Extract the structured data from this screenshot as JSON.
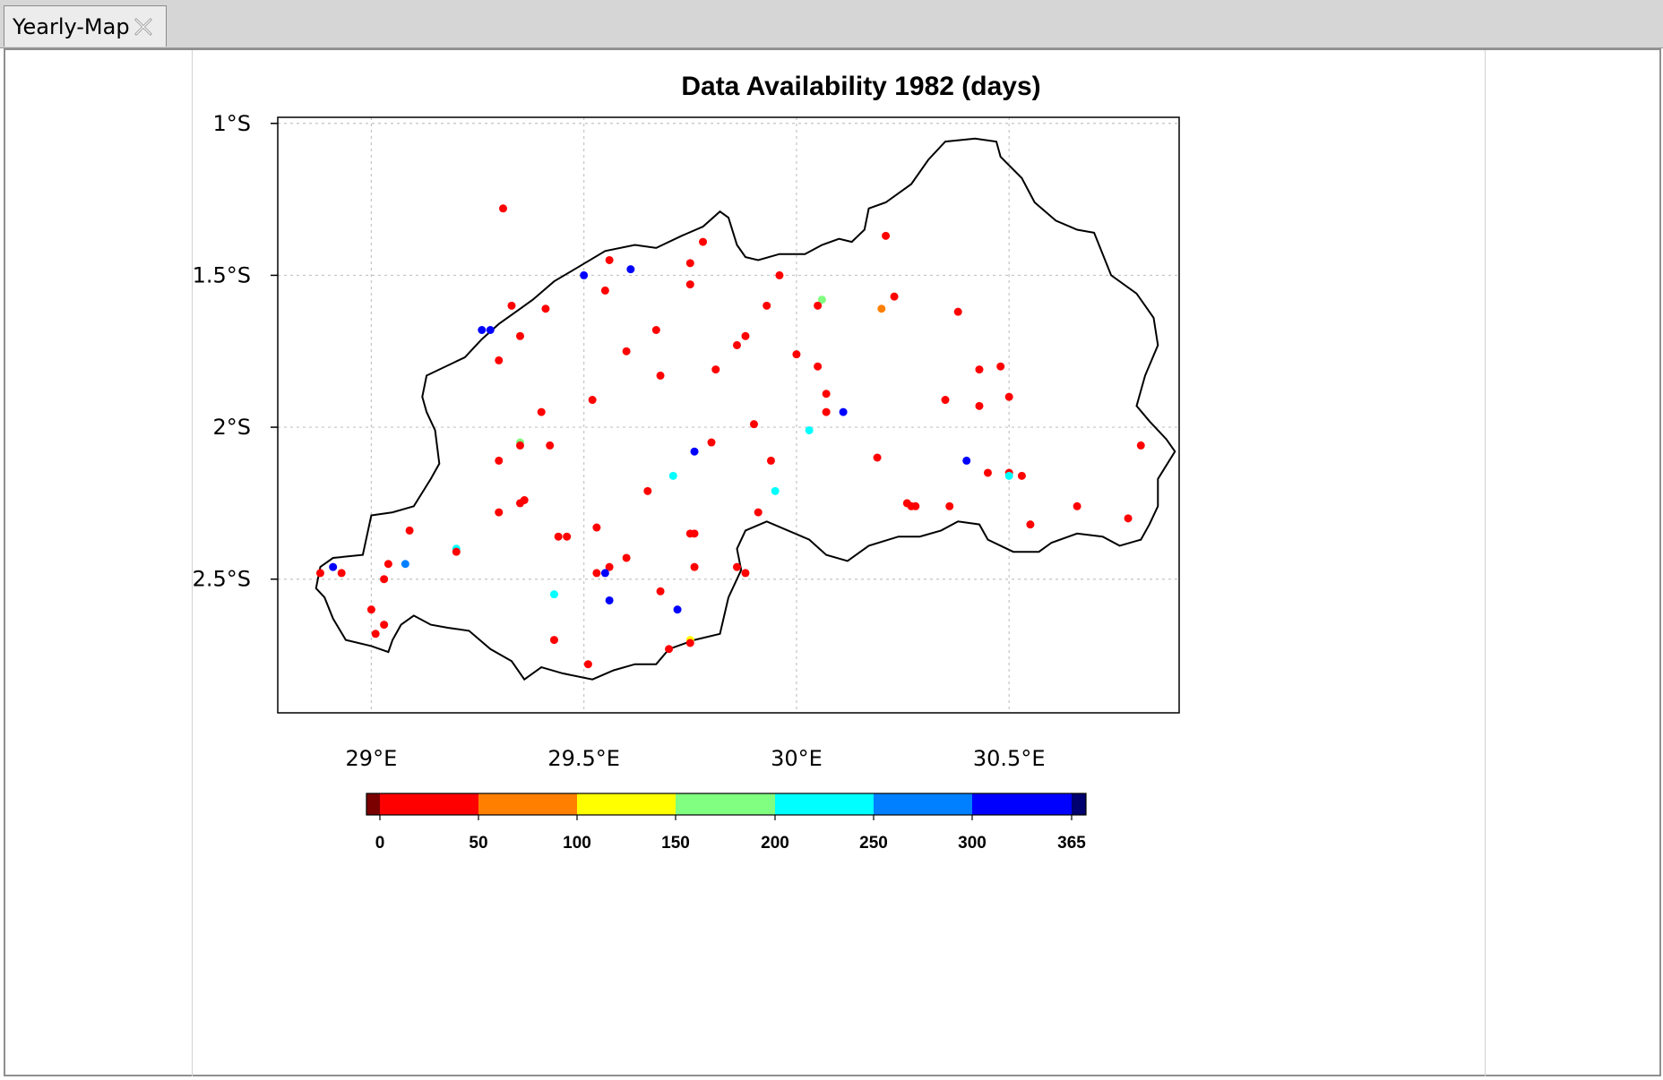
{
  "tab": {
    "title": "Yearly-Map",
    "close_icon": "close-icon"
  },
  "chart_data": {
    "type": "scatter",
    "title": "Data Availability 1982 (days)",
    "xlim": [
      28.78,
      30.9
    ],
    "ylim": [
      -2.94,
      -0.98
    ],
    "x_ticks": [
      {
        "value": 29.0,
        "label": "29°E"
      },
      {
        "value": 29.5,
        "label": "29.5°E"
      },
      {
        "value": 30.0,
        "label": "30°E"
      },
      {
        "value": 30.5,
        "label": "30.5°E"
      }
    ],
    "y_ticks": [
      {
        "value": -1.0,
        "label": "1°S"
      },
      {
        "value": -1.5,
        "label": "1.5°S"
      },
      {
        "value": -2.0,
        "label": "2°S"
      },
      {
        "value": -2.5,
        "label": "2.5°S"
      }
    ],
    "grid": true,
    "colorbar": {
      "ticks": [
        "0",
        "50",
        "100",
        "150",
        "200",
        "250",
        "300",
        "365"
      ],
      "bins": [
        {
          "from": null,
          "to": 0,
          "color": "#7a0000"
        },
        {
          "from": 0,
          "to": 50,
          "color": "#ff0000"
        },
        {
          "from": 50,
          "to": 100,
          "color": "#ff8000"
        },
        {
          "from": 100,
          "to": 150,
          "color": "#ffff00"
        },
        {
          "from": 150,
          "to": 200,
          "color": "#80ff80"
        },
        {
          "from": 200,
          "to": 250,
          "color": "#00ffff"
        },
        {
          "from": 250,
          "to": 300,
          "color": "#0080ff"
        },
        {
          "from": 300,
          "to": 365,
          "color": "#0000ff"
        },
        {
          "from": 365,
          "to": null,
          "color": "#00006e"
        }
      ]
    },
    "boundary": [
      [
        29.38,
        -1.58
      ],
      [
        29.43,
        -1.52
      ],
      [
        29.49,
        -1.47
      ],
      [
        29.55,
        -1.42
      ],
      [
        29.62,
        -1.4
      ],
      [
        29.67,
        -1.41
      ],
      [
        29.73,
        -1.37
      ],
      [
        29.78,
        -1.34
      ],
      [
        29.82,
        -1.29
      ],
      [
        29.84,
        -1.31
      ],
      [
        29.86,
        -1.4
      ],
      [
        29.88,
        -1.44
      ],
      [
        29.91,
        -1.45
      ],
      [
        29.96,
        -1.43
      ],
      [
        30.02,
        -1.43
      ],
      [
        30.06,
        -1.4
      ],
      [
        30.1,
        -1.38
      ],
      [
        30.13,
        -1.39
      ],
      [
        30.16,
        -1.35
      ],
      [
        30.17,
        -1.28
      ],
      [
        30.21,
        -1.26
      ],
      [
        30.27,
        -1.2
      ],
      [
        30.31,
        -1.12
      ],
      [
        30.35,
        -1.06
      ],
      [
        30.42,
        -1.05
      ],
      [
        30.47,
        -1.06
      ],
      [
        30.48,
        -1.11
      ],
      [
        30.53,
        -1.18
      ],
      [
        30.56,
        -1.26
      ],
      [
        30.61,
        -1.32
      ],
      [
        30.66,
        -1.35
      ],
      [
        30.7,
        -1.36
      ],
      [
        30.74,
        -1.5
      ],
      [
        30.8,
        -1.56
      ],
      [
        30.84,
        -1.64
      ],
      [
        30.85,
        -1.73
      ],
      [
        30.82,
        -1.83
      ],
      [
        30.8,
        -1.93
      ],
      [
        30.83,
        -1.98
      ],
      [
        30.87,
        -2.04
      ],
      [
        30.89,
        -2.08
      ],
      [
        30.85,
        -2.17
      ],
      [
        30.85,
        -2.26
      ],
      [
        30.83,
        -2.32
      ],
      [
        30.81,
        -2.37
      ],
      [
        30.76,
        -2.39
      ],
      [
        30.72,
        -2.36
      ],
      [
        30.66,
        -2.35
      ],
      [
        30.6,
        -2.38
      ],
      [
        30.57,
        -2.41
      ],
      [
        30.51,
        -2.41
      ],
      [
        30.45,
        -2.37
      ],
      [
        30.43,
        -2.32
      ],
      [
        30.38,
        -2.31
      ],
      [
        30.34,
        -2.34
      ],
      [
        30.29,
        -2.36
      ],
      [
        30.24,
        -2.36
      ],
      [
        30.17,
        -2.39
      ],
      [
        30.12,
        -2.44
      ],
      [
        30.07,
        -2.42
      ],
      [
        30.03,
        -2.37
      ],
      [
        29.98,
        -2.34
      ],
      [
        29.93,
        -2.31
      ],
      [
        29.88,
        -2.34
      ],
      [
        29.86,
        -2.4
      ],
      [
        29.87,
        -2.47
      ],
      [
        29.84,
        -2.56
      ],
      [
        29.82,
        -2.68
      ],
      [
        29.76,
        -2.7
      ],
      [
        29.7,
        -2.73
      ],
      [
        29.67,
        -2.78
      ],
      [
        29.62,
        -2.78
      ],
      [
        29.57,
        -2.8
      ],
      [
        29.52,
        -2.83
      ],
      [
        29.45,
        -2.81
      ],
      [
        29.4,
        -2.79
      ],
      [
        29.36,
        -2.83
      ],
      [
        29.33,
        -2.77
      ],
      [
        29.28,
        -2.73
      ],
      [
        29.23,
        -2.67
      ],
      [
        29.18,
        -2.66
      ],
      [
        29.14,
        -2.65
      ],
      [
        29.1,
        -2.62
      ],
      [
        29.07,
        -2.65
      ],
      [
        29.05,
        -2.7
      ],
      [
        29.04,
        -2.74
      ],
      [
        29.0,
        -2.72
      ],
      [
        28.94,
        -2.7
      ],
      [
        28.91,
        -2.63
      ],
      [
        28.89,
        -2.56
      ],
      [
        28.87,
        -2.53
      ],
      [
        28.88,
        -2.46
      ],
      [
        28.91,
        -2.43
      ],
      [
        28.98,
        -2.42
      ],
      [
        29.0,
        -2.29
      ],
      [
        29.05,
        -2.28
      ],
      [
        29.1,
        -2.26
      ],
      [
        29.14,
        -2.17
      ],
      [
        29.16,
        -2.12
      ],
      [
        29.15,
        -2.01
      ],
      [
        29.13,
        -1.95
      ],
      [
        29.12,
        -1.9
      ],
      [
        29.13,
        -1.83
      ],
      [
        29.22,
        -1.77
      ],
      [
        29.26,
        -1.71
      ],
      [
        29.3,
        -1.66
      ],
      [
        29.35,
        -1.61
      ],
      [
        29.38,
        -1.58
      ]
    ],
    "stations": [
      {
        "lon": 29.31,
        "lat": -1.28,
        "v": 10
      },
      {
        "lon": 30.21,
        "lat": -1.37,
        "v": 10
      },
      {
        "lon": 29.78,
        "lat": -1.39,
        "v": 10
      },
      {
        "lon": 29.56,
        "lat": -1.45,
        "v": 10
      },
      {
        "lon": 29.75,
        "lat": -1.46,
        "v": 10
      },
      {
        "lon": 29.61,
        "lat": -1.48,
        "v": 320
      },
      {
        "lon": 29.5,
        "lat": -1.5,
        "v": 320
      },
      {
        "lon": 29.96,
        "lat": -1.5,
        "v": 10
      },
      {
        "lon": 29.75,
        "lat": -1.53,
        "v": 10
      },
      {
        "lon": 29.55,
        "lat": -1.55,
        "v": 10
      },
      {
        "lon": 30.23,
        "lat": -1.57,
        "v": 10
      },
      {
        "lon": 30.06,
        "lat": -1.58,
        "v": 170
      },
      {
        "lon": 29.33,
        "lat": -1.6,
        "v": 10
      },
      {
        "lon": 29.93,
        "lat": -1.6,
        "v": 10
      },
      {
        "lon": 30.05,
        "lat": -1.6,
        "v": 10
      },
      {
        "lon": 29.41,
        "lat": -1.61,
        "v": 10
      },
      {
        "lon": 30.2,
        "lat": -1.61,
        "v": 60
      },
      {
        "lon": 30.38,
        "lat": -1.62,
        "v": 10
      },
      {
        "lon": 29.26,
        "lat": -1.68,
        "v": 320
      },
      {
        "lon": 29.28,
        "lat": -1.68,
        "v": 320
      },
      {
        "lon": 29.67,
        "lat": -1.68,
        "v": 10
      },
      {
        "lon": 29.35,
        "lat": -1.7,
        "v": 10
      },
      {
        "lon": 29.88,
        "lat": -1.7,
        "v": 10
      },
      {
        "lon": 29.86,
        "lat": -1.73,
        "v": 10
      },
      {
        "lon": 29.6,
        "lat": -1.75,
        "v": 10
      },
      {
        "lon": 30.0,
        "lat": -1.76,
        "v": 10
      },
      {
        "lon": 29.3,
        "lat": -1.78,
        "v": 10
      },
      {
        "lon": 30.05,
        "lat": -1.8,
        "v": 10
      },
      {
        "lon": 30.48,
        "lat": -1.8,
        "v": 10
      },
      {
        "lon": 29.81,
        "lat": -1.81,
        "v": 10
      },
      {
        "lon": 30.43,
        "lat": -1.81,
        "v": 10
      },
      {
        "lon": 29.68,
        "lat": -1.83,
        "v": 10
      },
      {
        "lon": 30.07,
        "lat": -1.89,
        "v": 10
      },
      {
        "lon": 30.5,
        "lat": -1.9,
        "v": 10
      },
      {
        "lon": 29.52,
        "lat": -1.91,
        "v": 10
      },
      {
        "lon": 30.35,
        "lat": -1.91,
        "v": 10
      },
      {
        "lon": 30.43,
        "lat": -1.93,
        "v": 10
      },
      {
        "lon": 29.4,
        "lat": -1.95,
        "v": 10
      },
      {
        "lon": 30.07,
        "lat": -1.95,
        "v": 10
      },
      {
        "lon": 30.11,
        "lat": -1.95,
        "v": 320
      },
      {
        "lon": 29.9,
        "lat": -1.99,
        "v": 10
      },
      {
        "lon": 30.03,
        "lat": -2.01,
        "v": 220
      },
      {
        "lon": 29.35,
        "lat": -2.05,
        "v": 170
      },
      {
        "lon": 29.8,
        "lat": -2.05,
        "v": 10
      },
      {
        "lon": 29.35,
        "lat": -2.06,
        "v": 10
      },
      {
        "lon": 29.42,
        "lat": -2.06,
        "v": 10
      },
      {
        "lon": 30.81,
        "lat": -2.06,
        "v": 10
      },
      {
        "lon": 29.76,
        "lat": -2.08,
        "v": 320
      },
      {
        "lon": 30.19,
        "lat": -2.1,
        "v": 10
      },
      {
        "lon": 29.3,
        "lat": -2.11,
        "v": 10
      },
      {
        "lon": 29.94,
        "lat": -2.11,
        "v": 10
      },
      {
        "lon": 30.4,
        "lat": -2.11,
        "v": 320
      },
      {
        "lon": 30.45,
        "lat": -2.15,
        "v": 10
      },
      {
        "lon": 30.5,
        "lat": -2.15,
        "v": 10
      },
      {
        "lon": 29.71,
        "lat": -2.16,
        "v": 220
      },
      {
        "lon": 30.5,
        "lat": -2.16,
        "v": 220
      },
      {
        "lon": 30.53,
        "lat": -2.16,
        "v": 10
      },
      {
        "lon": 29.65,
        "lat": -2.21,
        "v": 10
      },
      {
        "lon": 29.95,
        "lat": -2.21,
        "v": 220
      },
      {
        "lon": 29.36,
        "lat": -2.24,
        "v": 10
      },
      {
        "lon": 29.35,
        "lat": -2.25,
        "v": 10
      },
      {
        "lon": 30.26,
        "lat": -2.25,
        "v": 10
      },
      {
        "lon": 30.28,
        "lat": -2.26,
        "v": 10
      },
      {
        "lon": 30.27,
        "lat": -2.26,
        "v": 10
      },
      {
        "lon": 30.36,
        "lat": -2.26,
        "v": 10
      },
      {
        "lon": 30.66,
        "lat": -2.26,
        "v": 10
      },
      {
        "lon": 29.3,
        "lat": -2.28,
        "v": 10
      },
      {
        "lon": 29.91,
        "lat": -2.28,
        "v": 10
      },
      {
        "lon": 30.78,
        "lat": -2.3,
        "v": 10
      },
      {
        "lon": 30.55,
        "lat": -2.32,
        "v": 10
      },
      {
        "lon": 29.53,
        "lat": -2.33,
        "v": 10
      },
      {
        "lon": 29.09,
        "lat": -2.34,
        "v": 10
      },
      {
        "lon": 29.75,
        "lat": -2.35,
        "v": 10
      },
      {
        "lon": 29.76,
        "lat": -2.35,
        "v": 10
      },
      {
        "lon": 29.44,
        "lat": -2.36,
        "v": 10
      },
      {
        "lon": 29.46,
        "lat": -2.36,
        "v": 10
      },
      {
        "lon": 29.2,
        "lat": -2.4,
        "v": 220
      },
      {
        "lon": 29.2,
        "lat": -2.41,
        "v": 10
      },
      {
        "lon": 29.6,
        "lat": -2.43,
        "v": 10
      },
      {
        "lon": 29.04,
        "lat": -2.45,
        "v": 10
      },
      {
        "lon": 29.08,
        "lat": -2.45,
        "v": 270
      },
      {
        "lon": 28.91,
        "lat": -2.46,
        "v": 320
      },
      {
        "lon": 29.56,
        "lat": -2.46,
        "v": 10
      },
      {
        "lon": 29.76,
        "lat": -2.46,
        "v": 10
      },
      {
        "lon": 29.86,
        "lat": -2.46,
        "v": 10
      },
      {
        "lon": 28.88,
        "lat": -2.48,
        "v": 10
      },
      {
        "lon": 28.93,
        "lat": -2.48,
        "v": 10
      },
      {
        "lon": 29.53,
        "lat": -2.48,
        "v": 10
      },
      {
        "lon": 29.55,
        "lat": -2.48,
        "v": 320
      },
      {
        "lon": 29.88,
        "lat": -2.48,
        "v": 10
      },
      {
        "lon": 29.03,
        "lat": -2.5,
        "v": 10
      },
      {
        "lon": 29.68,
        "lat": -2.54,
        "v": 10
      },
      {
        "lon": 29.43,
        "lat": -2.55,
        "v": 220
      },
      {
        "lon": 29.56,
        "lat": -2.57,
        "v": 320
      },
      {
        "lon": 29.0,
        "lat": -2.6,
        "v": 10
      },
      {
        "lon": 29.72,
        "lat": -2.6,
        "v": 320
      },
      {
        "lon": 29.03,
        "lat": -2.65,
        "v": 10
      },
      {
        "lon": 29.01,
        "lat": -2.68,
        "v": 10
      },
      {
        "lon": 29.43,
        "lat": -2.7,
        "v": 10
      },
      {
        "lon": 29.75,
        "lat": -2.7,
        "v": 120
      },
      {
        "lon": 29.75,
        "lat": -2.71,
        "v": 10
      },
      {
        "lon": 29.7,
        "lat": -2.73,
        "v": 10
      },
      {
        "lon": 29.51,
        "lat": -2.78,
        "v": 10
      }
    ]
  }
}
